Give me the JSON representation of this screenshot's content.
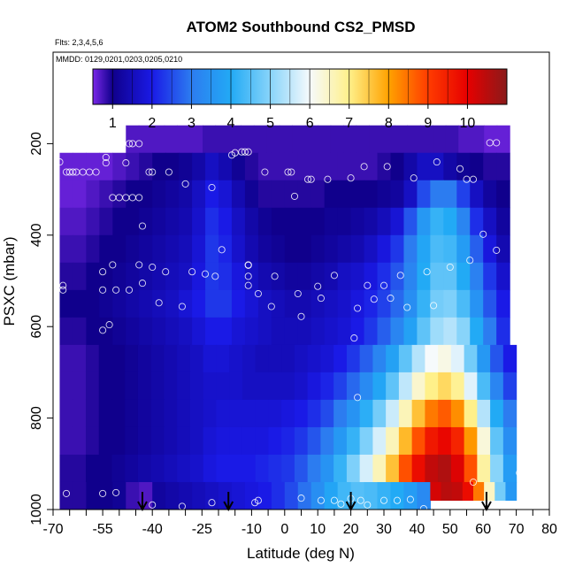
{
  "chart_data": {
    "type": "heatmap",
    "title": "ATOM2 Southbound CS2_PMSD",
    "subtitle_flights": "Flts: 2,3,4,5,6",
    "subtitle_dates": "MMDD: 0129,0201,0203,0205,0210",
    "xlabel": "Latitude (deg N)",
    "ylabel": "PSXC (mbar)",
    "xlim": [
      -70,
      80
    ],
    "ylim": [
      1000,
      0
    ],
    "x_ticks": [
      "-70",
      "-55",
      "-40",
      "-25",
      "-10",
      "0",
      "10",
      "20",
      "30",
      "40",
      "50",
      "60",
      "70",
      "80"
    ],
    "x_tick_values": [
      -70,
      -55,
      -40,
      -25,
      -10,
      0,
      10,
      20,
      30,
      40,
      50,
      60,
      70,
      80
    ],
    "x_minor_ticks": [
      -65,
      -60,
      -50,
      -45,
      -35,
      -30,
      -20,
      -15,
      -5,
      5,
      15,
      25,
      35,
      45,
      55,
      65,
      75
    ],
    "y_ticks": [
      "200",
      "400",
      "600",
      "800",
      "1000"
    ],
    "y_tick_values": [
      200,
      400,
      600,
      800,
      1000
    ],
    "colorbar": {
      "range": [
        0.5,
        11
      ],
      "ticks": [
        "1",
        "2",
        "3",
        "4",
        "5",
        "6",
        "7",
        "8",
        "9",
        "10"
      ],
      "tick_values": [
        1,
        2,
        3,
        4,
        5,
        6,
        7,
        8,
        9,
        10
      ],
      "stops": [
        {
          "v": 0.5,
          "c": "#7a28e8"
        },
        {
          "v": 1.0,
          "c": "#10008c"
        },
        {
          "v": 2.0,
          "c": "#1a1ae6"
        },
        {
          "v": 3.0,
          "c": "#2c7cf0"
        },
        {
          "v": 4.0,
          "c": "#22aaf5"
        },
        {
          "v": 5.0,
          "c": "#88d4fa"
        },
        {
          "v": 6.0,
          "c": "#f6fafc"
        },
        {
          "v": 7.0,
          "c": "#fff08a"
        },
        {
          "v": 8.0,
          "c": "#ffa200"
        },
        {
          "v": 9.0,
          "c": "#ff3c00"
        },
        {
          "v": 10.0,
          "c": "#e60000"
        },
        {
          "v": 11.0,
          "c": "#8a1a1a"
        }
      ]
    },
    "field": {
      "lat_edges": [
        -68,
        -64,
        -60,
        -56,
        -52,
        -48,
        -44,
        -40,
        -36,
        -32,
        -28,
        -24,
        -20,
        -16,
        -12,
        -8,
        -4,
        0,
        4,
        8,
        12,
        16,
        20,
        24,
        28,
        32,
        36,
        40,
        44,
        48,
        52,
        56,
        60,
        64,
        68,
        72
      ],
      "p_edges": [
        160,
        220,
        280,
        340,
        400,
        460,
        520,
        580,
        640,
        700,
        760,
        820,
        880,
        940,
        1000
      ],
      "cells": [
        {
          "lo": -48,
          "hi": 68,
          "p0": 160,
          "p1": 220,
          "v": [
            0.7,
            0.7,
            0.7,
            0.7,
            0.7,
            0.7,
            0.8,
            0.8,
            0.8,
            0.8,
            0.8,
            0.8,
            0.8,
            0.8,
            0.8,
            0.8,
            0.8,
            0.8,
            0.8,
            0.8,
            0.8,
            0.8,
            0.8,
            0.8,
            0.8,
            0.8,
            0.7,
            0.7,
            0.6,
            0.6
          ]
        },
        {
          "lo": -68,
          "hi": 68,
          "p0": 220,
          "p1": 280,
          "v": [
            0.6,
            0.6,
            0.6,
            0.6,
            0.7,
            0.8,
            0.9,
            1.0,
            1.0,
            1.1,
            1.3,
            1.6,
            1.4,
            1.1,
            0.9,
            0.8,
            0.8,
            0.8,
            0.8,
            0.8,
            0.8,
            0.8,
            0.8,
            0.8,
            0.9,
            1.0,
            1.3,
            1.6,
            1.6,
            1.3,
            1.1,
            1.0,
            0.9,
            0.9
          ]
        },
        {
          "lo": -68,
          "hi": 68,
          "p0": 280,
          "p1": 340,
          "v": [
            0.6,
            0.6,
            0.7,
            0.8,
            0.9,
            1.0,
            1.0,
            1.1,
            1.2,
            1.3,
            1.6,
            2.0,
            1.8,
            1.4,
            1.1,
            0.9,
            0.9,
            0.9,
            0.9,
            0.9,
            1.0,
            1.0,
            1.0,
            1.0,
            1.1,
            1.2,
            1.6,
            2.5,
            3.0,
            3.0,
            2.4,
            1.6,
            1.2,
            1.0
          ]
        },
        {
          "lo": -68,
          "hi": 68,
          "p0": 340,
          "p1": 400,
          "v": [
            0.7,
            0.7,
            0.8,
            0.9,
            1.0,
            1.0,
            1.1,
            1.2,
            1.3,
            1.4,
            1.7,
            2.2,
            2.0,
            1.6,
            1.3,
            1.1,
            1.0,
            1.0,
            1.0,
            1.0,
            1.1,
            1.1,
            1.2,
            1.3,
            1.5,
            1.8,
            2.6,
            3.6,
            4.2,
            4.0,
            3.2,
            2.2,
            1.6,
            1.2
          ]
        },
        {
          "lo": -68,
          "hi": 68,
          "p0": 400,
          "p1": 460,
          "v": [
            0.8,
            0.8,
            0.9,
            1.0,
            1.0,
            1.1,
            1.2,
            1.3,
            1.4,
            1.5,
            1.8,
            2.3,
            2.1,
            1.7,
            1.4,
            1.2,
            1.1,
            1.0,
            1.0,
            1.1,
            1.2,
            1.3,
            1.4,
            1.6,
            1.9,
            2.3,
            3.0,
            3.9,
            4.4,
            4.3,
            3.7,
            2.7,
            1.9,
            1.4
          ]
        },
        {
          "lo": -68,
          "hi": 68,
          "p0": 460,
          "p1": 520,
          "v": [
            0.9,
            0.9,
            1.0,
            1.0,
            1.1,
            1.2,
            1.3,
            1.4,
            1.5,
            1.6,
            1.9,
            2.3,
            2.2,
            1.9,
            1.6,
            1.4,
            1.3,
            1.2,
            1.2,
            1.3,
            1.4,
            1.6,
            1.7,
            1.9,
            2.2,
            2.6,
            3.2,
            4.0,
            4.6,
            4.6,
            4.0,
            3.1,
            2.3,
            1.7
          ]
        },
        {
          "lo": -68,
          "hi": 68,
          "p0": 520,
          "p1": 580,
          "v": [
            1.0,
            1.0,
            1.0,
            1.1,
            1.2,
            1.3,
            1.4,
            1.5,
            1.6,
            1.8,
            2.0,
            2.3,
            2.3,
            2.0,
            1.8,
            1.6,
            1.5,
            1.4,
            1.4,
            1.5,
            1.6,
            1.7,
            1.9,
            2.1,
            2.4,
            2.8,
            3.4,
            4.2,
            4.8,
            4.9,
            4.4,
            3.5,
            2.6,
            2.0
          ]
        },
        {
          "lo": -68,
          "hi": 68,
          "p0": 580,
          "p1": 640,
          "v": [
            0.9,
            0.9,
            1.0,
            1.0,
            1.1,
            1.2,
            1.3,
            1.4,
            1.5,
            1.6,
            1.8,
            2.0,
            2.0,
            1.8,
            1.7,
            1.6,
            1.5,
            1.5,
            1.5,
            1.6,
            1.7,
            1.8,
            2.0,
            2.3,
            2.7,
            3.2,
            3.8,
            4.6,
            5.2,
            5.4,
            5.0,
            4.0,
            3.0,
            2.2
          ]
        },
        {
          "lo": -68,
          "hi": 70,
          "p0": 640,
          "p1": 700,
          "v": [
            0.8,
            0.8,
            0.9,
            1.0,
            1.0,
            1.1,
            1.2,
            1.3,
            1.4,
            1.5,
            1.6,
            1.8,
            1.8,
            1.7,
            1.6,
            1.5,
            1.5,
            1.5,
            1.6,
            1.7,
            1.8,
            2.0,
            2.3,
            2.7,
            3.2,
            3.8,
            4.6,
            5.4,
            6.0,
            6.2,
            5.8,
            4.8,
            3.6,
            2.6,
            2.0
          ]
        },
        {
          "lo": -68,
          "hi": 70,
          "p0": 700,
          "p1": 760,
          "v": [
            0.8,
            0.8,
            0.9,
            1.0,
            1.0,
            1.1,
            1.2,
            1.3,
            1.4,
            1.5,
            1.6,
            1.7,
            1.7,
            1.7,
            1.6,
            1.6,
            1.6,
            1.6,
            1.7,
            1.9,
            2.1,
            2.4,
            2.8,
            3.3,
            3.9,
            4.6,
            5.5,
            6.4,
            7.0,
            7.3,
            6.9,
            5.8,
            4.4,
            3.2,
            2.4
          ]
        },
        {
          "lo": -68,
          "hi": 70,
          "p0": 760,
          "p1": 820,
          "v": [
            0.8,
            0.8,
            0.9,
            1.0,
            1.0,
            1.1,
            1.2,
            1.3,
            1.4,
            1.5,
            1.6,
            1.7,
            1.8,
            1.8,
            1.8,
            1.8,
            1.8,
            1.9,
            2.0,
            2.2,
            2.5,
            3.0,
            3.5,
            4.1,
            4.8,
            5.6,
            6.6,
            7.6,
            8.4,
            8.7,
            8.2,
            7.0,
            5.4,
            4.0,
            3.0
          ]
        },
        {
          "lo": -68,
          "hi": 70,
          "p0": 820,
          "p1": 880,
          "v": [
            0.8,
            0.8,
            0.9,
            1.0,
            1.0,
            1.1,
            1.2,
            1.3,
            1.4,
            1.5,
            1.6,
            1.8,
            1.9,
            1.9,
            1.9,
            1.9,
            2.0,
            2.1,
            2.3,
            2.6,
            3.0,
            3.6,
            4.2,
            4.9,
            5.7,
            6.6,
            7.7,
            8.8,
            9.6,
            9.9,
            9.4,
            8.1,
            6.3,
            4.6,
            3.4
          ]
        },
        {
          "lo": -68,
          "hi": 70,
          "p0": 880,
          "p1": 940,
          "v": [
            0.9,
            0.9,
            1.0,
            1.0,
            1.1,
            1.2,
            1.3,
            1.4,
            1.5,
            1.6,
            1.7,
            1.9,
            2.0,
            2.0,
            2.0,
            2.1,
            2.2,
            2.3,
            2.6,
            3.0,
            3.5,
            4.2,
            4.9,
            5.7,
            6.6,
            7.6,
            8.8,
            9.8,
            10.4,
            10.6,
            10.1,
            8.8,
            6.8,
            5.0,
            3.7
          ]
        },
        {
          "lo": -68,
          "hi": 44,
          "p0": 940,
          "p1": 1000,
          "v": [
            0.9,
            0.9,
            1.0,
            1.0,
            1.1,
            0.8,
            0.7,
            1.2,
            1.3,
            1.4,
            1.5,
            1.6,
            1.7,
            1.8,
            1.9,
            2.0,
            2.2,
            2.5,
            2.9,
            3.4,
            3.9,
            4.3,
            4.5,
            4.4,
            4.2,
            4.0,
            3.7,
            3.3
          ]
        },
        {
          "lo": 44,
          "hi": 70,
          "p0": 940,
          "p1": 980,
          "v": [
            10.2,
            10.5,
            10.4,
            9.8,
            8.4,
            6.5,
            4.8,
            3.6
          ]
        }
      ]
    },
    "observations": [
      {
        "x": -68,
        "y": 240
      },
      {
        "x": -66,
        "y": 262
      },
      {
        "x": -65,
        "y": 262
      },
      {
        "x": -64,
        "y": 262
      },
      {
        "x": -63,
        "y": 262
      },
      {
        "x": -61,
        "y": 262
      },
      {
        "x": -59,
        "y": 262
      },
      {
        "x": -57,
        "y": 262
      },
      {
        "x": -54,
        "y": 230
      },
      {
        "x": -54,
        "y": 242
      },
      {
        "x": -52,
        "y": 318
      },
      {
        "x": -50,
        "y": 318
      },
      {
        "x": -48,
        "y": 318
      },
      {
        "x": -46,
        "y": 318
      },
      {
        "x": -44,
        "y": 318
      },
      {
        "x": -48,
        "y": 242
      },
      {
        "x": -47,
        "y": 200
      },
      {
        "x": -46,
        "y": 200
      },
      {
        "x": -44,
        "y": 200
      },
      {
        "x": -43,
        "y": 380
      },
      {
        "x": -40,
        "y": 262
      },
      {
        "x": -41,
        "y": 262
      },
      {
        "x": -35,
        "y": 262
      },
      {
        "x": -30,
        "y": 288
      },
      {
        "x": -22,
        "y": 296
      },
      {
        "x": -16,
        "y": 225
      },
      {
        "x": -15,
        "y": 220
      },
      {
        "x": -13,
        "y": 218
      },
      {
        "x": -12,
        "y": 218
      },
      {
        "x": -11,
        "y": 218
      },
      {
        "x": -6,
        "y": 262
      },
      {
        "x": 1,
        "y": 262
      },
      {
        "x": 2,
        "y": 262
      },
      {
        "x": 3,
        "y": 315
      },
      {
        "x": 7,
        "y": 278
      },
      {
        "x": 8,
        "y": 278
      },
      {
        "x": 13,
        "y": 278
      },
      {
        "x": 20,
        "y": 275
      },
      {
        "x": 24,
        "y": 250
      },
      {
        "x": 31,
        "y": 250
      },
      {
        "x": 39,
        "y": 275
      },
      {
        "x": 46,
        "y": 240
      },
      {
        "x": 53,
        "y": 255
      },
      {
        "x": 55,
        "y": 278
      },
      {
        "x": 57,
        "y": 278
      },
      {
        "x": 62,
        "y": 198
      },
      {
        "x": 64,
        "y": 198
      },
      {
        "x": 60,
        "y": 398
      },
      {
        "x": -19,
        "y": 432
      },
      {
        "x": -11,
        "y": 465
      },
      {
        "x": -11,
        "y": 466
      },
      {
        "x": -11,
        "y": 490
      },
      {
        "x": -11,
        "y": 510
      },
      {
        "x": -3,
        "y": 490
      },
      {
        "x": -67,
        "y": 510
      },
      {
        "x": -67,
        "y": 520
      },
      {
        "x": -55,
        "y": 480
      },
      {
        "x": -52,
        "y": 465
      },
      {
        "x": -55,
        "y": 520
      },
      {
        "x": -51,
        "y": 520
      },
      {
        "x": -47,
        "y": 520
      },
      {
        "x": -44,
        "y": 465
      },
      {
        "x": -43,
        "y": 505
      },
      {
        "x": -40,
        "y": 470
      },
      {
        "x": -36,
        "y": 480
      },
      {
        "x": -28,
        "y": 480
      },
      {
        "x": -24,
        "y": 485
      },
      {
        "x": -21,
        "y": 490
      },
      {
        "x": -8,
        "y": 528
      },
      {
        "x": -38,
        "y": 548
      },
      {
        "x": -31,
        "y": 556
      },
      {
        "x": -4,
        "y": 556
      },
      {
        "x": 4,
        "y": 528
      },
      {
        "x": 5,
        "y": 578
      },
      {
        "x": 10,
        "y": 512
      },
      {
        "x": 11,
        "y": 538
      },
      {
        "x": 15,
        "y": 488
      },
      {
        "x": 22,
        "y": 560
      },
      {
        "x": 25,
        "y": 510
      },
      {
        "x": 27,
        "y": 540
      },
      {
        "x": 30,
        "y": 510
      },
      {
        "x": 32,
        "y": 538
      },
      {
        "x": 35,
        "y": 488
      },
      {
        "x": 37,
        "y": 558
      },
      {
        "x": 43,
        "y": 480
      },
      {
        "x": 45,
        "y": 554
      },
      {
        "x": 50,
        "y": 470
      },
      {
        "x": 56,
        "y": 455
      },
      {
        "x": 64,
        "y": 433
      },
      {
        "x": -55,
        "y": 608
      },
      {
        "x": -53,
        "y": 596
      },
      {
        "x": 21,
        "y": 625
      },
      {
        "x": 22,
        "y": 755
      },
      {
        "x": -66,
        "y": 965
      },
      {
        "x": -55,
        "y": 965
      },
      {
        "x": -51,
        "y": 963
      },
      {
        "x": -40,
        "y": 990
      },
      {
        "x": -31,
        "y": 993
      },
      {
        "x": -22,
        "y": 985
      },
      {
        "x": -9,
        "y": 985
      },
      {
        "x": -8,
        "y": 980
      },
      {
        "x": 5,
        "y": 975
      },
      {
        "x": 11,
        "y": 980
      },
      {
        "x": 15,
        "y": 980
      },
      {
        "x": 17,
        "y": 988
      },
      {
        "x": 20,
        "y": 976
      },
      {
        "x": 23,
        "y": 980
      },
      {
        "x": 25,
        "y": 990
      },
      {
        "x": 30,
        "y": 980
      },
      {
        "x": 34,
        "y": 980
      },
      {
        "x": 38,
        "y": 978
      },
      {
        "x": 42,
        "y": 998
      },
      {
        "x": 57,
        "y": 940
      },
      {
        "x": 71,
        "y": 920
      }
    ],
    "arrows_lat": [
      -43,
      -17,
      20,
      61
    ]
  }
}
